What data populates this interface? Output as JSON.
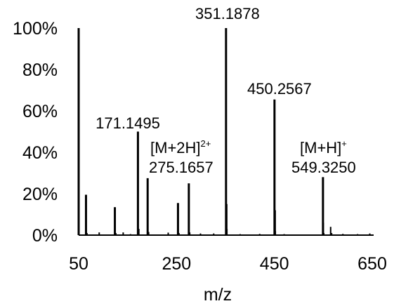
{
  "chart_data": {
    "type": "bar",
    "title": "",
    "xlabel": "m/z",
    "ylabel": "",
    "xlim": [
      50,
      650
    ],
    "ylim": [
      0,
      100
    ],
    "x_ticks": [
      50,
      250,
      450,
      650
    ],
    "x_tick_labels": [
      "50",
      "250",
      "450",
      "650"
    ],
    "y_ticks": [
      0,
      20,
      40,
      60,
      80,
      100
    ],
    "y_tick_labels": [
      "0%",
      "20%",
      "40%",
      "60%",
      "80%",
      "100%"
    ],
    "grid": false,
    "legend": "none",
    "bar_color": "#000000",
    "series": [
      {
        "x": [
          50,
          65,
          67,
          92,
          124,
          126,
          141,
          156,
          171.1495,
          173,
          191,
          193,
          233,
          253,
          255,
          275.1657,
          277,
          299,
          326,
          351.1878,
          352,
          353,
          380,
          420,
          450.2567,
          451,
          452,
          470,
          549.325,
          550,
          551,
          565,
          567,
          590,
          620,
          645
        ],
        "values": [
          100,
          19.5,
          1,
          1.3,
          13.5,
          1,
          1.3,
          0.5,
          50,
          3,
          27.5,
          1.5,
          1.2,
          15.5,
          1,
          25,
          1.3,
          0.8,
          0.8,
          100,
          15,
          3,
          0.5,
          0.6,
          65.5,
          12,
          2,
          0.5,
          28,
          6,
          1,
          4,
          1,
          0.6,
          0.5,
          0.8
        ]
      }
    ],
    "annotations": [
      {
        "id": "p171",
        "text": "171.1495",
        "x": 171.1495,
        "y": 50
      },
      {
        "id": "p275a",
        "text": "[M+2H]",
        "sup": "2+",
        "x": 275.1657,
        "y": 25
      },
      {
        "id": "p275b",
        "text": "275.1657",
        "x": 275.1657,
        "y": 25
      },
      {
        "id": "p351",
        "text": "351.1878",
        "x": 351.1878,
        "y": 100
      },
      {
        "id": "p450",
        "text": "450.2567",
        "x": 450.2567,
        "y": 65.5
      },
      {
        "id": "p549a",
        "text": "[M+H]",
        "sup": "+",
        "x": 549.325,
        "y": 28
      },
      {
        "id": "p549b",
        "text": "549.3250",
        "x": 549.325,
        "y": 28
      }
    ]
  }
}
